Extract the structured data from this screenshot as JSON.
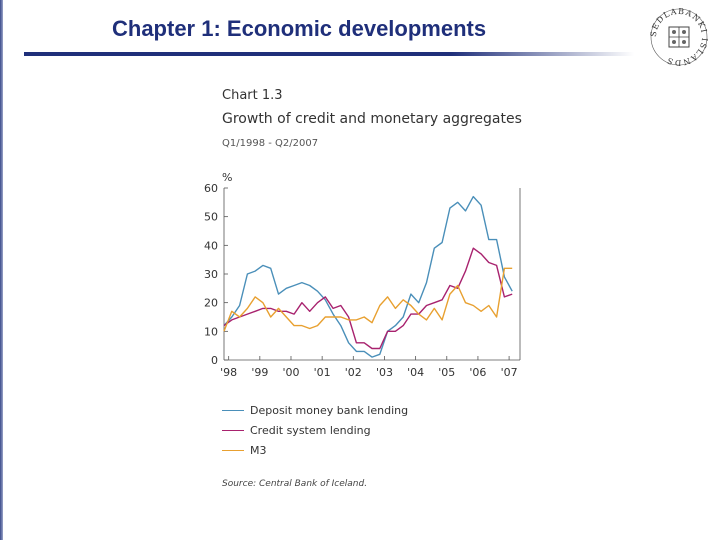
{
  "slide": {
    "title": "Chapter 1: Economic developments",
    "colors": {
      "title": "#1f2f7a",
      "rule": "#1f2f7a"
    }
  },
  "logo": {
    "icon": "university-seal-icon",
    "text": "SEDLABANKI ISLANDS"
  },
  "chart_data": {
    "type": "line",
    "chart_number": "Chart 1.3",
    "title": "Growth of credit and monetary aggregates",
    "subtitle": "Q1/1998 - Q2/2007",
    "ylabel": "%",
    "xlabel": "",
    "ylim": [
      0,
      60
    ],
    "yticks": [
      0,
      10,
      20,
      30,
      40,
      50,
      60
    ],
    "xlim": [
      1998.0,
      2007.5
    ],
    "xtick_labels": [
      "'98",
      "'99",
      "'00",
      "'01",
      "'02",
      "'03",
      "'04",
      "'05",
      "'06",
      "'07"
    ],
    "xticks": [
      1998.15,
      1999.15,
      2000.15,
      2001.15,
      2002.15,
      2003.15,
      2004.15,
      2005.15,
      2006.15,
      2007.15
    ],
    "grid": false,
    "legend_position": "bottom",
    "source": "Source: Central Bank of Iceland.",
    "series": [
      {
        "name": "Deposit money bank lending",
        "color": "#4a8fb9",
        "x": [
          1998.0,
          1998.25,
          1998.5,
          1998.75,
          1999.0,
          1999.25,
          1999.5,
          1999.75,
          2000.0,
          2000.25,
          2000.5,
          2000.75,
          2001.0,
          2001.25,
          2001.5,
          2001.75,
          2002.0,
          2002.25,
          2002.5,
          2002.75,
          2003.0,
          2003.25,
          2003.5,
          2003.75,
          2004.0,
          2004.25,
          2004.5,
          2004.75,
          2005.0,
          2005.25,
          2005.5,
          2005.75,
          2006.0,
          2006.25,
          2006.5,
          2006.75,
          2007.0,
          2007.25
        ],
        "values": [
          12,
          15,
          19,
          30,
          31,
          33,
          32,
          23,
          25,
          26,
          27,
          26,
          24,
          21,
          16,
          12,
          6,
          3,
          3,
          1,
          2,
          10,
          12,
          15,
          23,
          20,
          27,
          39,
          41,
          53,
          55,
          52,
          57,
          54,
          42,
          42,
          29,
          24
        ]
      },
      {
        "name": "Credit system lending",
        "color": "#a8226e",
        "x": [
          1998.0,
          1998.25,
          1998.5,
          1998.75,
          1999.0,
          1999.25,
          1999.5,
          1999.75,
          2000.0,
          2000.25,
          2000.5,
          2000.75,
          2001.0,
          2001.25,
          2001.5,
          2001.75,
          2002.0,
          2002.25,
          2002.5,
          2002.75,
          2003.0,
          2003.25,
          2003.5,
          2003.75,
          2004.0,
          2004.25,
          2004.5,
          2004.75,
          2005.0,
          2005.25,
          2005.5,
          2005.75,
          2006.0,
          2006.25,
          2006.5,
          2006.75,
          2007.0,
          2007.25
        ],
        "values": [
          12,
          14,
          15,
          16,
          17,
          18,
          18,
          17,
          17,
          16,
          20,
          17,
          20,
          22,
          18,
          19,
          15,
          6,
          6,
          4,
          4,
          10,
          10,
          12,
          16,
          16,
          19,
          20,
          21,
          26,
          25,
          31,
          39,
          37,
          34,
          33,
          22,
          23
        ]
      },
      {
        "name": "M3",
        "color": "#e8a030",
        "x": [
          1998.0,
          1998.25,
          1998.5,
          1998.75,
          1999.0,
          1999.25,
          1999.5,
          1999.75,
          2000.0,
          2000.25,
          2000.5,
          2000.75,
          2001.0,
          2001.25,
          2001.5,
          2001.75,
          2002.0,
          2002.25,
          2002.5,
          2002.75,
          2003.0,
          2003.25,
          2003.5,
          2003.75,
          2004.0,
          2004.25,
          2004.5,
          2004.75,
          2005.0,
          2005.25,
          2005.5,
          2005.75,
          2006.0,
          2006.25,
          2006.5,
          2006.75,
          2007.0,
          2007.25
        ],
        "values": [
          10,
          17,
          15,
          18,
          22,
          20,
          15,
          18,
          15,
          12,
          12,
          11,
          12,
          15,
          15,
          15,
          14,
          14,
          15,
          13,
          19,
          22,
          18,
          21,
          19,
          16,
          14,
          18,
          14,
          23,
          26,
          20,
          19,
          17,
          19,
          15,
          32,
          32
        ]
      }
    ]
  }
}
